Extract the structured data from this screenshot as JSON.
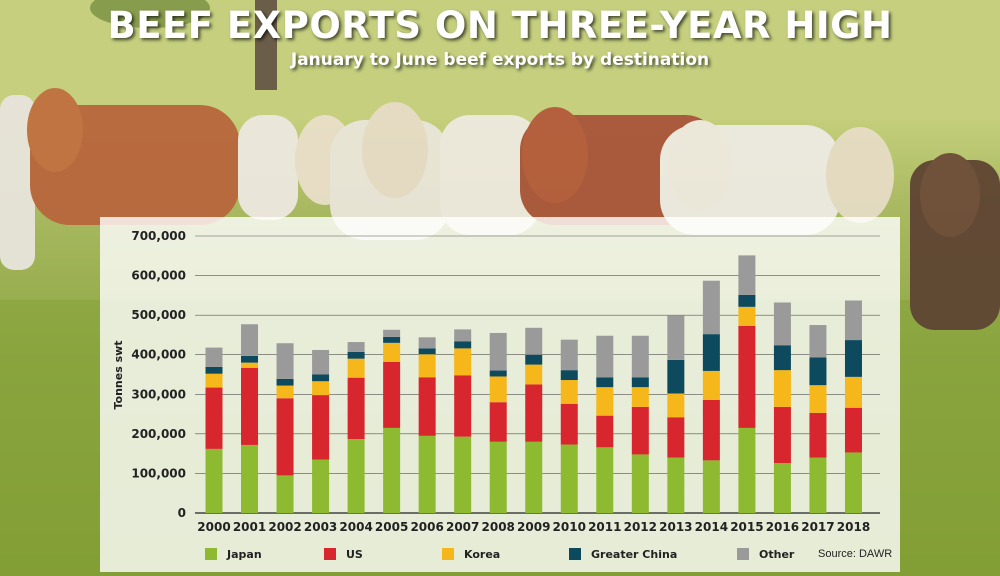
{
  "header": {
    "title": "BEEF EXPORTS ON THREE-YEAR HIGH",
    "subtitle": "January to June beef exports by destination"
  },
  "source": "Source: DAWR",
  "colors": {
    "Japan": "#8dba31",
    "US": "#d7262e",
    "Korea": "#f5b719",
    "Greater China": "#0d4a5e",
    "Other": "#9a9a9a"
  },
  "chart_data": {
    "type": "bar",
    "stacked": true,
    "ylabel": "Tonnes swt",
    "xlabel": "",
    "ylim": [
      0,
      700000
    ],
    "yticks": [
      "0",
      "100,000",
      "200,000",
      "300,000",
      "400,000",
      "500,000",
      "600,000",
      "700,000"
    ],
    "grid": true,
    "legend_position": "bottom",
    "categories": [
      "2000",
      "2001",
      "2002",
      "2003",
      "2004",
      "2005",
      "2006",
      "2007",
      "2008",
      "2009",
      "2010",
      "2011",
      "2012",
      "2013",
      "2014",
      "2015",
      "2016",
      "2017",
      "2018"
    ],
    "series": [
      {
        "name": "Japan",
        "values": [
          162000,
          172000,
          95000,
          135000,
          187000,
          215000,
          195000,
          193000,
          180000,
          180000,
          173000,
          166000,
          148000,
          140000,
          133000,
          215000,
          126000,
          140000,
          153000
        ]
      },
      {
        "name": "US",
        "values": [
          155000,
          195000,
          195000,
          163000,
          155000,
          167000,
          148000,
          155000,
          100000,
          145000,
          103000,
          80000,
          120000,
          102000,
          153000,
          258000,
          142000,
          113000,
          113000
        ]
      },
      {
        "name": "Korea",
        "values": [
          35000,
          13000,
          32000,
          35000,
          48000,
          48000,
          58000,
          68000,
          65000,
          50000,
          60000,
          72000,
          50000,
          60000,
          73000,
          48000,
          93000,
          70000,
          78000
        ]
      },
      {
        "name": "Greater China",
        "values": [
          17000,
          17000,
          17000,
          17000,
          17000,
          15000,
          15000,
          18000,
          15000,
          25000,
          25000,
          25000,
          25000,
          85000,
          93000,
          30000,
          63000,
          70000,
          93000
        ]
      },
      {
        "name": "Other",
        "values": [
          49000,
          80000,
          90000,
          62000,
          25000,
          18000,
          28000,
          30000,
          95000,
          68000,
          77000,
          105000,
          105000,
          113000,
          135000,
          100000,
          108000,
          82000,
          100000
        ]
      }
    ]
  }
}
